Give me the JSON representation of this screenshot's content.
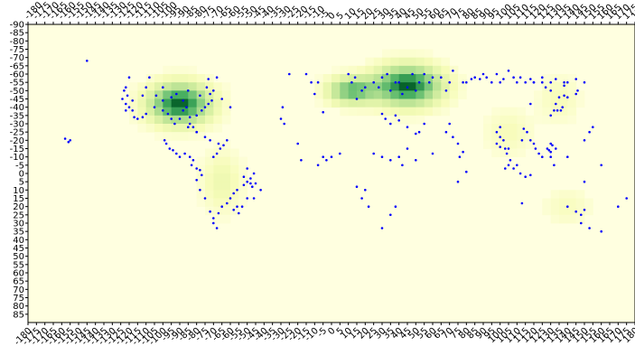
{
  "chart_data": {
    "type": "heatmap",
    "title": "",
    "xlabel": "",
    "ylabel": "",
    "xlim": [
      -180,
      180
    ],
    "ylim": [
      -90,
      90
    ],
    "y_axis_direction": "down",
    "x_tick_step": 5,
    "y_tick_step": 5,
    "x_tick_labels": [
      "-180",
      "-175",
      "-170",
      "-165",
      "-160",
      "-155",
      "-150",
      "-145",
      "-140",
      "-135",
      "-130",
      "-125",
      "-120",
      "-115",
      "-110",
      "-105",
      "-100",
      "-95",
      "-90",
      "-85",
      "-80",
      "-75",
      "-70",
      "-65",
      "-60",
      "-55",
      "-50",
      "-45",
      "-40",
      "-35",
      "-30",
      "-25",
      "-20",
      "-15",
      "-10",
      "-5",
      "0",
      "5",
      "10",
      "15",
      "20",
      "25",
      "30",
      "35",
      "40",
      "45",
      "50",
      "55",
      "60",
      "65",
      "70",
      "75",
      "80",
      "85",
      "90",
      "95",
      "100",
      "105",
      "110",
      "115",
      "120",
      "125",
      "130",
      "135",
      "140",
      "145",
      "150",
      "155",
      "160",
      "165",
      "170",
      "175",
      "180"
    ],
    "y_tick_labels": [
      "-90",
      "-85",
      "-80",
      "-75",
      "-70",
      "-65",
      "-60",
      "-55",
      "-50",
      "-45",
      "-40",
      "-35",
      "-30",
      "-25",
      "-20",
      "-15",
      "-10",
      "-5",
      "0",
      "5",
      "10",
      "15",
      "20",
      "25",
      "30",
      "35",
      "40",
      "45",
      "50",
      "55",
      "60",
      "65",
      "70",
      "75",
      "80",
      "85"
    ],
    "colors": {
      "low": "#fbfcd9",
      "high": "#005a24",
      "points": "#0000ff",
      "frame": "#000000"
    },
    "density_clusters": [
      {
        "name": "",
        "x": -90,
        "y": -42,
        "sx": 18,
        "sy": 12,
        "peak": 1.0
      },
      {
        "name": "",
        "x": -65,
        "y": 5,
        "sx": 12,
        "sy": 18,
        "peak": 0.18
      },
      {
        "name": "",
        "x": 12,
        "y": -50,
        "sx": 14,
        "sy": 8,
        "peak": 0.7
      },
      {
        "name": "",
        "x": 45,
        "y": -53,
        "sx": 20,
        "sy": 12,
        "peak": 1.0
      },
      {
        "name": "",
        "x": 105,
        "y": -25,
        "sx": 14,
        "sy": 14,
        "peak": 0.12
      },
      {
        "name": "",
        "x": 135,
        "y": -45,
        "sx": 12,
        "sy": 14,
        "peak": 0.12
      },
      {
        "name": "",
        "x": 140,
        "y": 20,
        "sx": 14,
        "sy": 12,
        "peak": 0.1
      }
    ],
    "points": [
      [
        -155,
        -20
      ],
      [
        -156,
        -19
      ],
      [
        -158,
        -21
      ],
      [
        -145,
        -68
      ],
      [
        -120,
        -58
      ],
      [
        -122,
        -52
      ],
      [
        -123,
        -50
      ],
      [
        -121,
        -47
      ],
      [
        -124,
        -45
      ],
      [
        -122,
        -42
      ],
      [
        -120,
        -40
      ],
      [
        -118,
        -38
      ],
      [
        -122,
        -38
      ],
      [
        -117,
        -34
      ],
      [
        -115,
        -33
      ],
      [
        -112,
        -34
      ],
      [
        -110,
        -36
      ],
      [
        -105,
        -40
      ],
      [
        -100,
        -38
      ],
      [
        -97,
        -36
      ],
      [
        -95,
        -33
      ],
      [
        -93,
        -30
      ],
      [
        -90,
        -33
      ],
      [
        -88,
        -38
      ],
      [
        -86,
        -40
      ],
      [
        -84,
        -34
      ],
      [
        -80,
        -35
      ],
      [
        -82,
        -28
      ],
      [
        -80,
        -25
      ],
      [
        -84,
        -30
      ],
      [
        -77,
        -38
      ],
      [
        -75,
        -40
      ],
      [
        -73,
        -42
      ],
      [
        -71,
        -44
      ],
      [
        -88,
        -44
      ],
      [
        -95,
        -46
      ],
      [
        -100,
        -44
      ],
      [
        -104,
        -47
      ],
      [
        -110,
        -52
      ],
      [
        -112,
        -47
      ],
      [
        -118,
        -44
      ],
      [
        -108,
        -58
      ],
      [
        -100,
        -52
      ],
      [
        -92,
        -48
      ],
      [
        -85,
        -50
      ],
      [
        -78,
        -47
      ],
      [
        -74,
        -52
      ],
      [
        -70,
        -50
      ],
      [
        -68,
        -58
      ],
      [
        -73,
        -57
      ],
      [
        -99,
        -20
      ],
      [
        -98,
        -18
      ],
      [
        -96,
        -15
      ],
      [
        -94,
        -14
      ],
      [
        -92,
        -12
      ],
      [
        -90,
        -10
      ],
      [
        -87,
        -12
      ],
      [
        -84,
        -10
      ],
      [
        -82,
        -8
      ],
      [
        -83,
        -5
      ],
      [
        -80,
        -3
      ],
      [
        -78,
        -2
      ],
      [
        -80,
        4
      ],
      [
        -77,
        1
      ],
      [
        -70,
        -10
      ],
      [
        -68,
        -12
      ],
      [
        -67,
        -18
      ],
      [
        -66,
        -15
      ],
      [
        -64,
        -17
      ],
      [
        -62,
        -20
      ],
      [
        -72,
        -20
      ],
      [
        -80,
        -25
      ],
      [
        -75,
        -22
      ],
      [
        -85,
        -28
      ],
      [
        -78,
        10
      ],
      [
        -75,
        15
      ],
      [
        -72,
        23
      ],
      [
        -70,
        30
      ],
      [
        -68,
        33
      ],
      [
        -70,
        27
      ],
      [
        -67,
        24
      ],
      [
        -65,
        20
      ],
      [
        -62,
        18
      ],
      [
        -60,
        15
      ],
      [
        -58,
        12
      ],
      [
        -56,
        10
      ],
      [
        -52,
        7
      ],
      [
        -50,
        5
      ],
      [
        -48,
        3
      ],
      [
        -46,
        0
      ],
      [
        -48,
        6
      ],
      [
        -50,
        -3
      ],
      [
        -52,
        2
      ],
      [
        -56,
        20
      ],
      [
        -58,
        22
      ],
      [
        -55,
        24
      ],
      [
        -53,
        20
      ],
      [
        -47,
        8
      ],
      [
        -45,
        6
      ],
      [
        -50,
        15
      ],
      [
        -46,
        15
      ],
      [
        -42,
        10
      ],
      [
        -60,
        -40
      ],
      [
        -65,
        -45
      ],
      [
        -72,
        -48
      ],
      [
        -29,
        -40
      ],
      [
        -28,
        -30
      ],
      [
        -30,
        -33
      ],
      [
        -20,
        -18
      ],
      [
        -25,
        -60
      ],
      [
        -15,
        -60
      ],
      [
        -12,
        -55
      ],
      [
        -8,
        -55
      ],
      [
        -5,
        -37
      ],
      [
        -10,
        -48
      ],
      [
        -5,
        -10
      ],
      [
        -3,
        -8
      ],
      [
        0,
        -10
      ],
      [
        5,
        -12
      ],
      [
        -18,
        -8
      ],
      [
        -8,
        -5
      ],
      [
        10,
        -60
      ],
      [
        12,
        -55
      ],
      [
        14,
        -58
      ],
      [
        15,
        -45
      ],
      [
        18,
        -50
      ],
      [
        20,
        -52
      ],
      [
        25,
        -55
      ],
      [
        28,
        -52
      ],
      [
        30,
        -58
      ],
      [
        33,
        -60
      ],
      [
        35,
        -50
      ],
      [
        38,
        -55
      ],
      [
        40,
        -55
      ],
      [
        42,
        -48
      ],
      [
        45,
        -52
      ],
      [
        48,
        -60
      ],
      [
        50,
        -50
      ],
      [
        52,
        -55
      ],
      [
        55,
        -60
      ],
      [
        58,
        -55
      ],
      [
        60,
        -58
      ],
      [
        65,
        -58
      ],
      [
        68,
        -50
      ],
      [
        70,
        -55
      ],
      [
        72,
        -62
      ],
      [
        78,
        -55
      ],
      [
        80,
        -55
      ],
      [
        83,
        -57
      ],
      [
        85,
        -58
      ],
      [
        88,
        -57
      ],
      [
        90,
        -60
      ],
      [
        92,
        -58
      ],
      [
        95,
        -55
      ],
      [
        98,
        -60
      ],
      [
        100,
        -55
      ],
      [
        102,
        -57
      ],
      [
        105,
        -62
      ],
      [
        108,
        -58
      ],
      [
        110,
        -55
      ],
      [
        112,
        -58
      ],
      [
        115,
        -55
      ],
      [
        118,
        -57
      ],
      [
        120,
        -55
      ],
      [
        125,
        -58
      ],
      [
        130,
        -55
      ],
      [
        133,
        -57
      ],
      [
        138,
        -55
      ],
      [
        145,
        -57
      ],
      [
        150,
        -55
      ],
      [
        30,
        -36
      ],
      [
        32,
        -33
      ],
      [
        35,
        -30
      ],
      [
        38,
        -35
      ],
      [
        40,
        -32
      ],
      [
        45,
        -28
      ],
      [
        50,
        -24
      ],
      [
        52,
        -25
      ],
      [
        55,
        -30
      ],
      [
        25,
        -12
      ],
      [
        30,
        -10
      ],
      [
        35,
        -8
      ],
      [
        40,
        -10
      ],
      [
        42,
        -5
      ],
      [
        45,
        -15
      ],
      [
        50,
        -8
      ],
      [
        60,
        -12
      ],
      [
        68,
        -25
      ],
      [
        70,
        -30
      ],
      [
        72,
        -22
      ],
      [
        75,
        -18
      ],
      [
        78,
        -13
      ],
      [
        76,
        -10
      ],
      [
        75,
        5
      ],
      [
        80,
        -1
      ],
      [
        38,
        20
      ],
      [
        35,
        25
      ],
      [
        30,
        33
      ],
      [
        18,
        15
      ],
      [
        15,
        8
      ],
      [
        22,
        20
      ],
      [
        20,
        10
      ],
      [
        100,
        -28
      ],
      [
        98,
        -25
      ],
      [
        100,
        -22
      ],
      [
        98,
        -18
      ],
      [
        102,
        -20
      ],
      [
        100,
        -16
      ],
      [
        103,
        -15
      ],
      [
        105,
        -15
      ],
      [
        104,
        -12
      ],
      [
        105,
        -5
      ],
      [
        103,
        -3
      ],
      [
        106,
        -8
      ],
      [
        108,
        -3
      ],
      [
        110,
        -5
      ],
      [
        112,
        0
      ],
      [
        115,
        2
      ],
      [
        118,
        1
      ],
      [
        114,
        -27
      ],
      [
        116,
        -25
      ],
      [
        113,
        -20
      ],
      [
        118,
        -20
      ],
      [
        120,
        -18
      ],
      [
        121,
        -15
      ],
      [
        123,
        -12
      ],
      [
        125,
        -10
      ],
      [
        130,
        -35
      ],
      [
        132,
        -38
      ],
      [
        134,
        -38
      ],
      [
        136,
        -38
      ],
      [
        133,
        -42
      ],
      [
        135,
        -46
      ],
      [
        138,
        -47
      ],
      [
        140,
        -46
      ],
      [
        137,
        -40
      ],
      [
        127,
        -52
      ],
      [
        130,
        -50
      ],
      [
        138,
        -53
      ],
      [
        140,
        -55
      ],
      [
        145,
        -48
      ],
      [
        146,
        -50
      ],
      [
        150,
        -20
      ],
      [
        153,
        -25
      ],
      [
        155,
        -28
      ],
      [
        132,
        -5
      ],
      [
        129,
        -14
      ],
      [
        130,
        -13
      ],
      [
        128,
        -15
      ],
      [
        131,
        -17
      ],
      [
        133,
        -15
      ],
      [
        130,
        -18
      ],
      [
        130,
        -10
      ],
      [
        140,
        -10
      ],
      [
        150,
        5
      ],
      [
        160,
        -5
      ],
      [
        113,
        18
      ],
      [
        140,
        20
      ],
      [
        145,
        23
      ],
      [
        148,
        25
      ],
      [
        150,
        22
      ],
      [
        148,
        30
      ],
      [
        153,
        33
      ],
      [
        160,
        35
      ],
      [
        170,
        20
      ],
      [
        175,
        15
      ],
      [
        120,
        -55
      ],
      [
        125,
        -55
      ],
      [
        118,
        -42
      ]
    ]
  }
}
